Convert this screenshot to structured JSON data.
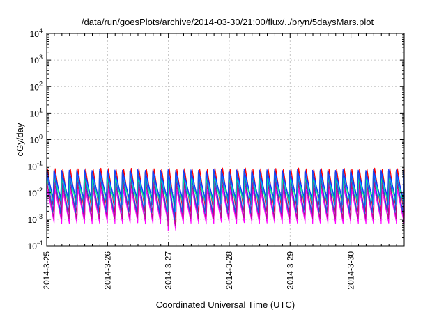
{
  "chart_data": {
    "type": "line",
    "title": "/data/run/goesPlots/archive/2014-03-30/21:00/flux/../bryn/5daysMars.plot",
    "xlabel": "Coordinated Universal Time (UTC)",
    "ylabel": "cGy/day",
    "yscale": "log",
    "ylim": [
      0.0001,
      10000
    ],
    "xlim_days": [
      "2014-03-25 00:00",
      "2014-03-30 21:00"
    ],
    "y_ticks": [
      {
        "base": "10",
        "exp": "-4",
        "value": 0.0001
      },
      {
        "base": "10",
        "exp": "-3",
        "value": 0.001
      },
      {
        "base": "10",
        "exp": "-2",
        "value": 0.01
      },
      {
        "base": "10",
        "exp": "-1",
        "value": 0.1
      },
      {
        "base": "10",
        "exp": "0",
        "value": 1
      },
      {
        "base": "10",
        "exp": "1",
        "value": 10
      },
      {
        "base": "10",
        "exp": "2",
        "value": 100
      },
      {
        "base": "10",
        "exp": "3",
        "value": 1000
      },
      {
        "base": "10",
        "exp": "4",
        "value": 10000
      }
    ],
    "x_ticks": [
      "2014-3-25",
      "2014-3-26",
      "2014-3-27",
      "2014-3-28",
      "2014-3-29",
      "2014-3-30"
    ],
    "grid": true,
    "legend": "none",
    "pattern": {
      "description_period_hours": 3,
      "series_peak_trough": [
        {
          "color": "#ff0000",
          "peak": 0.07,
          "trough": 0.0012
        },
        {
          "color": "#ff00ff",
          "peak": 0.012,
          "trough": 0.0006
        },
        {
          "color": "#b0108a",
          "peak": 0.02,
          "trough": 0.0009
        },
        {
          "color": "#00b0ff",
          "peak": 0.045,
          "trough": 0.003
        },
        {
          "color": "#00ff80",
          "peak": 0.03,
          "trough": 0.004
        },
        {
          "color": "#1030ff",
          "peak": 0.065,
          "trough": 0.005
        },
        {
          "color": "#2050e0",
          "peak": 0.055,
          "trough": 0.0015
        }
      ]
    }
  }
}
